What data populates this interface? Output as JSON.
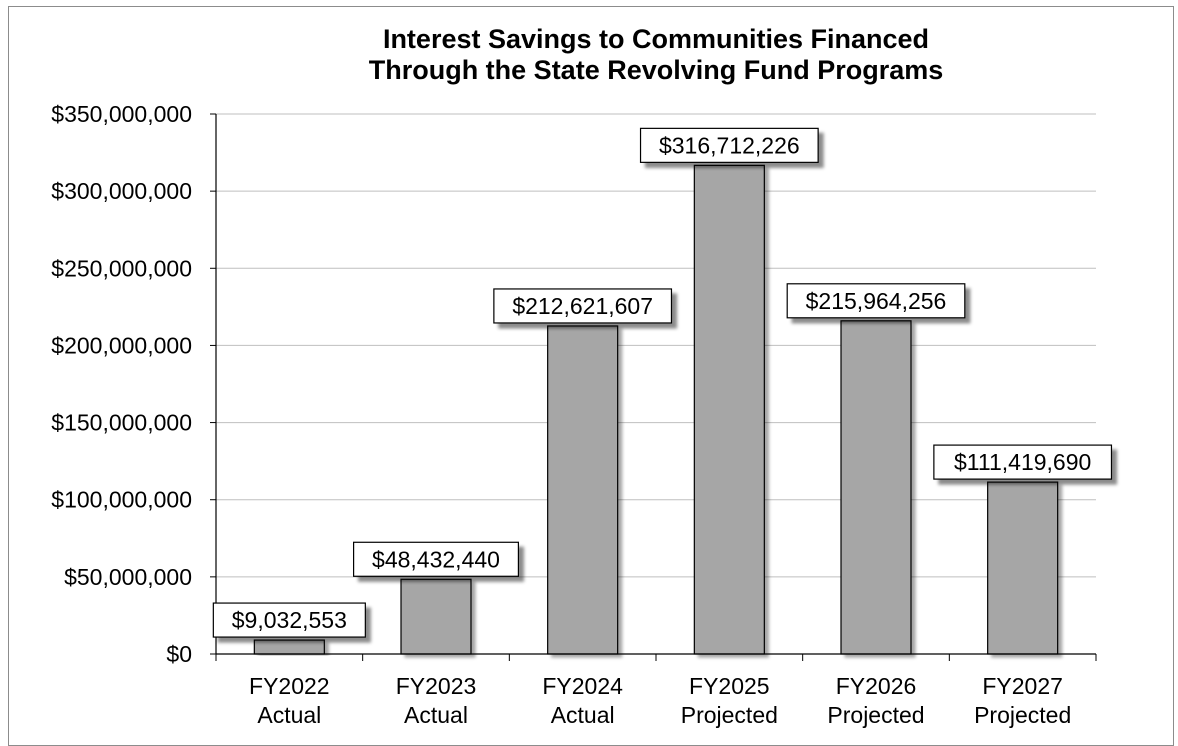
{
  "chart_data": {
    "type": "bar",
    "title_line1": "Interest Savings to Communities Financed",
    "title_line2": "Through the State Revolving Fund Programs",
    "categories": [
      [
        "FY2022",
        "Actual"
      ],
      [
        "FY2023",
        "Actual"
      ],
      [
        "FY2024",
        "Actual"
      ],
      [
        "FY2025",
        "Projected"
      ],
      [
        "FY2026",
        "Projected"
      ],
      [
        "FY2027",
        "Projected"
      ]
    ],
    "values": [
      9032553,
      48432440,
      212621607,
      316712226,
      215964256,
      111419690
    ],
    "data_labels": [
      "$9,032,553",
      "$48,432,440",
      "$212,621,607",
      "$316,712,226",
      "$215,964,256",
      "$111,419,690"
    ],
    "y_ticks": [
      0,
      50000000,
      100000000,
      150000000,
      200000000,
      250000000,
      300000000,
      350000000
    ],
    "y_tick_labels": [
      "$0",
      "$50,000,000",
      "$100,000,000",
      "$150,000,000",
      "$200,000,000",
      "$250,000,000",
      "$300,000,000",
      "$350,000,000"
    ],
    "ylim": [
      0,
      350000000
    ],
    "grid": true,
    "bar_color": "#a6a6a6",
    "xlabel": "",
    "ylabel": ""
  }
}
